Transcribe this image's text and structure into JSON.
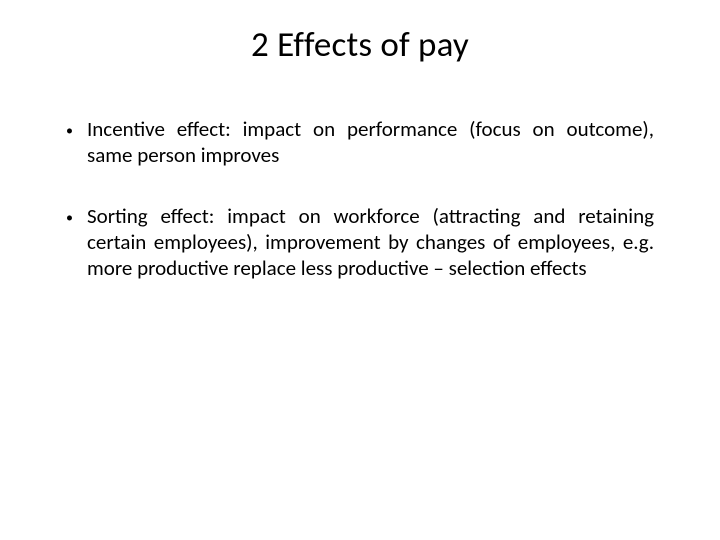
{
  "slide": {
    "title": "2 Effects of pay",
    "bullets": [
      {
        "text": "Incentive effect: impact on performance (focus on outcome), same person improves"
      },
      {
        "text": "Sorting effect: impact on workforce (attracting and retaining certain employees), improvement by changes of employees, e.g. more productive replace less productive – selection effects"
      }
    ],
    "styling": {
      "background_color": "#ffffff",
      "title_fontsize": 35,
      "title_fontweight": 400,
      "title_color": "#000000",
      "body_fontsize": 21,
      "body_color": "#000000",
      "bullet_marker": "•",
      "font_family": "Calibri"
    }
  }
}
